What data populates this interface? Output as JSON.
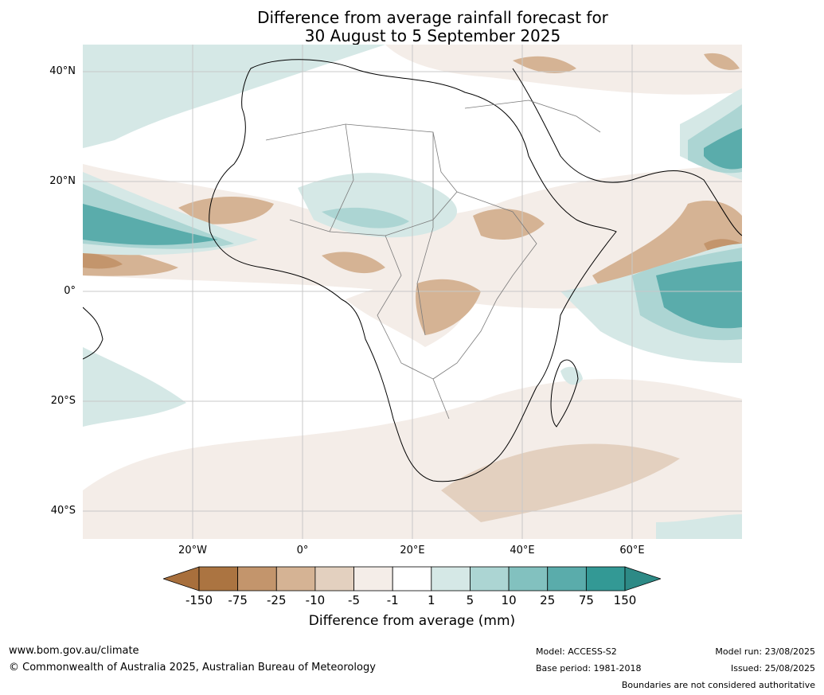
{
  "title_line1": "Difference from average rainfall forecast for",
  "title_line2": "30 August to 5 September 2025",
  "lat_labels": [
    "40°N",
    "20°N",
    "0°",
    "20°S",
    "40°S"
  ],
  "lon_labels": [
    "20°W",
    "0°",
    "20°E",
    "40°E",
    "60°E"
  ],
  "colorbar": {
    "title": "Difference from average (mm)",
    "tick_labels": [
      "-150",
      "-75",
      "-25",
      "-10",
      "-5",
      "-1",
      "1",
      "5",
      "10",
      "25",
      "75",
      "150"
    ],
    "colors": [
      "#a86f3c",
      "#ab7441",
      "#c3956c",
      "#d5b394",
      "#e3d0bf",
      "#f4ede8",
      "#ffffff",
      "#d5e8e6",
      "#acd5d3",
      "#82c1bf",
      "#5aacab",
      "#339995",
      "#2d8a86"
    ]
  },
  "footer": {
    "website": "www.bom.gov.au/climate",
    "copyright": "© Commonwealth of Australia 2025, Australian Bureau of Meteorology",
    "model": "Model: ACCESS-S2",
    "base_period": "Base period: 1981-2018",
    "model_run": "Model run: 23/08/2025",
    "issued": "Issued: 25/08/2025",
    "disclaimer": "Boundaries are not considered authoritative"
  }
}
